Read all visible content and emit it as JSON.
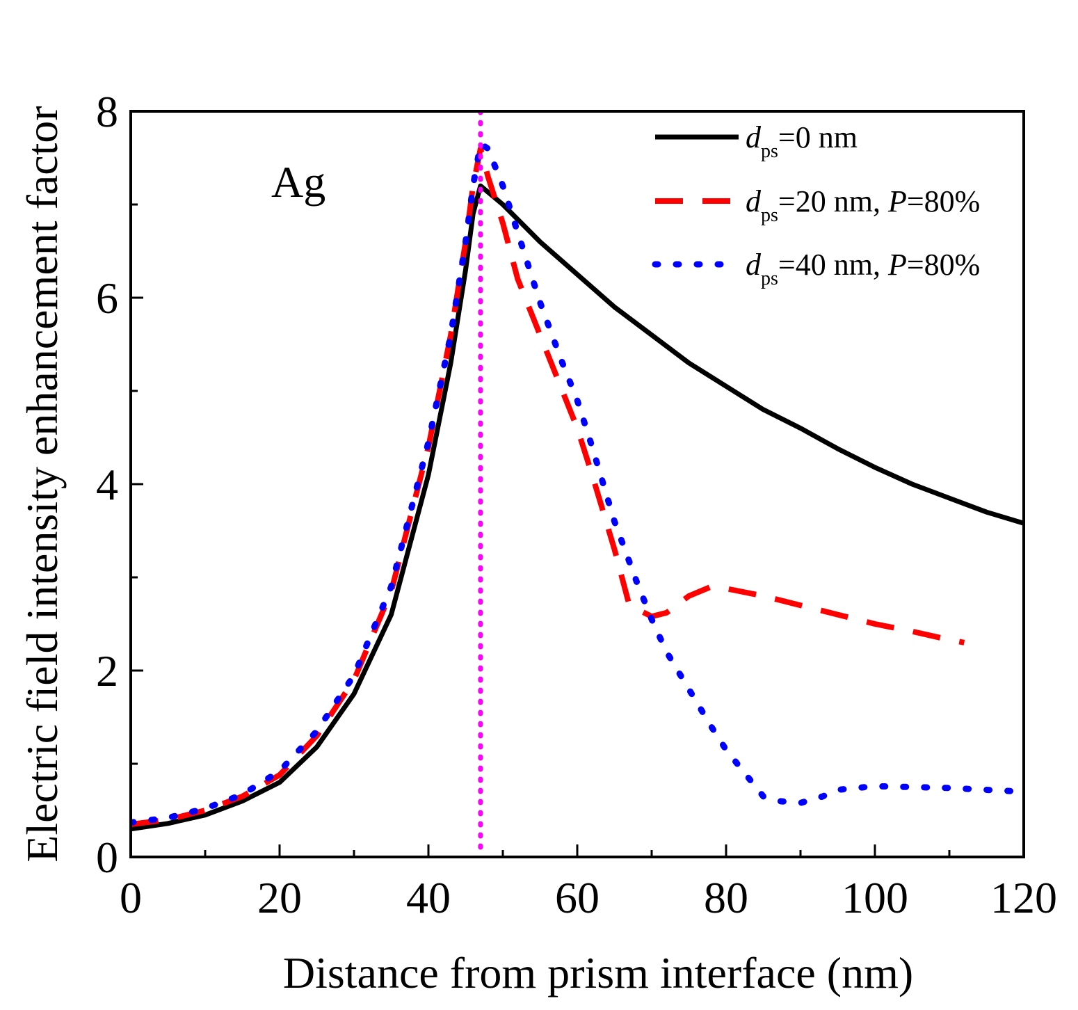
{
  "chart_data": {
    "type": "line",
    "title": "",
    "xlabel": "Distance from prism interface (nm)",
    "ylabel": "Electric field intensity enhancement factor",
    "xlim": [
      0,
      120
    ],
    "ylim": [
      0,
      8
    ],
    "xticks": [
      0,
      20,
      40,
      60,
      80,
      100,
      120
    ],
    "yticks": [
      0,
      2,
      4,
      6,
      8
    ],
    "grid": false,
    "legend_position": "top-right",
    "annotation": "Ag",
    "vertical_line": {
      "x": 47,
      "color": "#ff00ff",
      "style": "dotted"
    },
    "series": [
      {
        "name": "dps=0 nm",
        "legend": {
          "var": "d",
          "sub": "ps",
          "rest": "=0 nm",
          "italic_var2": "",
          "tail": ""
        },
        "color": "#000000",
        "style": "solid",
        "x": [
          0,
          5,
          10,
          15,
          20,
          25,
          30,
          35,
          40,
          43,
          45,
          46,
          47,
          50,
          55,
          60,
          65,
          70,
          75,
          80,
          85,
          90,
          95,
          100,
          105,
          110,
          115,
          120
        ],
        "y": [
          0.3,
          0.36,
          0.45,
          0.6,
          0.8,
          1.18,
          1.75,
          2.6,
          4.1,
          5.3,
          6.3,
          6.9,
          7.2,
          7.0,
          6.6,
          6.25,
          5.9,
          5.6,
          5.3,
          5.05,
          4.8,
          4.6,
          4.38,
          4.18,
          4.0,
          3.85,
          3.7,
          3.58
        ]
      },
      {
        "name": "dps=20 nm, P=80%",
        "legend": {
          "var": "d",
          "sub": "ps",
          "rest": "=20 nm, ",
          "italic_var2": "P",
          "tail": "=80%"
        },
        "color": "#ff0000",
        "style": "dashed",
        "x": [
          0,
          5,
          10,
          15,
          20,
          25,
          30,
          35,
          40,
          43,
          45,
          46,
          47,
          48,
          50,
          52,
          55,
          58,
          60,
          62,
          65,
          67,
          70,
          72,
          75,
          78,
          80,
          85,
          90,
          95,
          100,
          105,
          110,
          112
        ],
        "y": [
          0.35,
          0.4,
          0.5,
          0.65,
          0.88,
          1.3,
          1.9,
          2.85,
          4.4,
          5.6,
          6.6,
          7.2,
          7.6,
          7.3,
          6.8,
          6.2,
          5.6,
          5.0,
          4.6,
          4.1,
          3.3,
          2.7,
          2.58,
          2.62,
          2.8,
          2.9,
          2.88,
          2.8,
          2.7,
          2.6,
          2.5,
          2.42,
          2.33,
          2.3
        ]
      },
      {
        "name": "dps=40 nm, P=80%",
        "legend": {
          "var": "d",
          "sub": "ps",
          "rest": "=40 nm, ",
          "italic_var2": "P",
          "tail": "=80%"
        },
        "color": "#0000ff",
        "style": "dotted",
        "x": [
          0,
          5,
          10,
          15,
          20,
          25,
          30,
          35,
          40,
          43,
          45,
          46,
          47,
          48,
          50,
          52,
          55,
          58,
          60,
          62,
          65,
          68,
          70,
          72,
          75,
          78,
          80,
          83,
          85,
          87,
          90,
          93,
          95,
          100,
          105,
          110,
          115,
          120
        ],
        "y": [
          0.37,
          0.42,
          0.52,
          0.67,
          0.92,
          1.35,
          1.95,
          2.9,
          4.45,
          5.6,
          6.6,
          7.2,
          7.65,
          7.6,
          7.2,
          6.7,
          5.95,
          5.3,
          4.9,
          4.4,
          3.6,
          2.95,
          2.55,
          2.2,
          1.8,
          1.4,
          1.15,
          0.85,
          0.65,
          0.6,
          0.58,
          0.65,
          0.72,
          0.76,
          0.75,
          0.74,
          0.72,
          0.7
        ]
      }
    ]
  }
}
